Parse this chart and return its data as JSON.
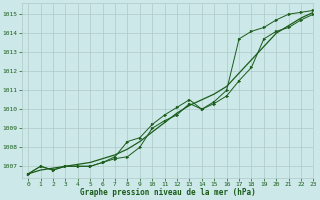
{
  "title": "Graphe pression niveau de la mer (hPa)",
  "bg_color": "#cce8e8",
  "grid_color": "#b0c8c8",
  "line_color": "#1a5c1a",
  "xlim": [
    -0.5,
    23
  ],
  "ylim": [
    1006.4,
    1015.6
  ],
  "yticks": [
    1007,
    1008,
    1009,
    1010,
    1011,
    1012,
    1013,
    1014,
    1015
  ],
  "xticks": [
    0,
    1,
    2,
    3,
    4,
    5,
    6,
    7,
    8,
    9,
    10,
    11,
    12,
    13,
    14,
    15,
    16,
    17,
    18,
    19,
    20,
    21,
    22,
    23
  ],
  "series_smooth": [
    1006.6,
    1006.8,
    1006.9,
    1007.0,
    1007.1,
    1007.2,
    1007.4,
    1007.6,
    1007.9,
    1008.3,
    1008.8,
    1009.3,
    1009.8,
    1010.2,
    1010.5,
    1010.8,
    1011.2,
    1011.9,
    1012.6,
    1013.3,
    1014.0,
    1014.4,
    1014.8,
    1015.1
  ],
  "series_low": [
    1006.6,
    1007.0,
    1006.8,
    1007.0,
    1007.0,
    1007.0,
    1007.2,
    1007.4,
    1007.5,
    1008.0,
    1009.0,
    1009.4,
    1009.7,
    1010.3,
    1010.0,
    1010.3,
    1010.7,
    1011.5,
    1012.2,
    1013.7,
    1014.1,
    1014.3,
    1014.7,
    1015.0
  ],
  "series_high": [
    1006.6,
    1007.0,
    1006.8,
    1007.0,
    1007.0,
    1007.0,
    1007.2,
    1007.5,
    1008.3,
    1008.5,
    1009.2,
    1009.7,
    1010.1,
    1010.5,
    1010.0,
    1010.4,
    1011.0,
    1013.7,
    1014.1,
    1014.3,
    1014.7,
    1015.0,
    1015.1,
    1015.2
  ]
}
